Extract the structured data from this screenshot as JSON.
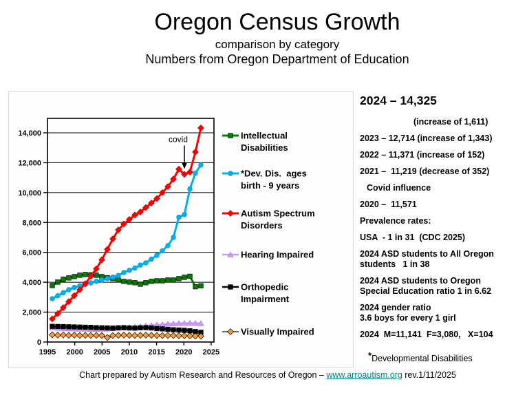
{
  "header": {
    "title": "Oregon Census Growth",
    "subtitle1": "comparison by category",
    "subtitle2": "Numbers from Oregon Department of Education"
  },
  "chart_data": {
    "type": "line",
    "title": "",
    "xlabel": "",
    "ylabel": "",
    "grid": "horizontal",
    "legend_position": "right",
    "x": [
      1997,
      1998,
      1999,
      2000,
      2001,
      2002,
      2003,
      2004,
      2005,
      2006,
      2007,
      2008,
      2009,
      2010,
      2011,
      2012,
      2013,
      2014,
      2015,
      2016,
      2017,
      2018,
      2019,
      2020,
      2021,
      2022,
      2023,
      2024
    ],
    "x_ticks": [
      1995,
      2000,
      2005,
      2010,
      2015,
      2020,
      2025
    ],
    "y_ticks": [
      0,
      2000,
      4000,
      6000,
      8000,
      10000,
      12000,
      14000
    ],
    "y_tick_labels": [
      "0",
      "2,000",
      "4,000",
      "6,000",
      "8,000",
      "10,000",
      "12,000",
      "14,000"
    ],
    "ylim": [
      0,
      15000
    ],
    "annotation": {
      "text": "covid",
      "points_to_series": "Autism Spectrum Disorders",
      "points_to_year": 2021
    },
    "series": [
      {
        "name": "Intellectual Disabilities",
        "legend_lines": [
          "Intellectual",
          "Disabilities"
        ],
        "color": "#008000",
        "marker": "square",
        "marker_fill": "#008000",
        "marker_stroke": "#000000",
        "values": [
          3780,
          4010,
          4200,
          4290,
          4380,
          4470,
          4520,
          4500,
          4470,
          4380,
          4300,
          4240,
          4150,
          4060,
          4010,
          3970,
          3870,
          3970,
          4060,
          4100,
          4100,
          4150,
          4150,
          4240,
          4330,
          4400,
          3700,
          3760
        ]
      },
      {
        "name": "*Dev. Dis.  ages birth - 9 years",
        "legend_lines": [
          "*Dev. Dis.  ages",
          "birth - 9 years"
        ],
        "color": "#00B0F0",
        "marker": "circle",
        "marker_fill": "#00B0F0",
        "marker_stroke": "#0090C8",
        "values": [
          2900,
          3100,
          3300,
          3500,
          3650,
          3760,
          3860,
          3960,
          4060,
          4150,
          4250,
          4350,
          4450,
          4650,
          4800,
          4950,
          5150,
          5300,
          5550,
          5800,
          6100,
          6450,
          7000,
          8350,
          8530,
          10240,
          11300,
          11850
        ]
      },
      {
        "name": "Autism Spectrum Disorders",
        "legend_lines": [
          "Autism Spectrum",
          "Disorders"
        ],
        "color": "#FF0000",
        "marker": "diamond",
        "marker_fill": "#FF0000",
        "marker_stroke": "#D00000",
        "values": [
          1550,
          1900,
          2300,
          2700,
          3100,
          3500,
          3900,
          4400,
          4900,
          5500,
          6200,
          6900,
          7500,
          7900,
          8200,
          8500,
          8700,
          9000,
          9300,
          9600,
          10000,
          10400,
          10900,
          11571,
          11219,
          11371,
          12714,
          14325
        ]
      },
      {
        "name": "Hearing Impaired",
        "legend_lines": [
          "Hearing Impaired"
        ],
        "color": "#CC99FF",
        "marker": "triangle",
        "marker_fill": "#CC99FF",
        "marker_stroke": "#9966CC",
        "values": [
          950,
          930,
          910,
          890,
          880,
          870,
          870,
          860,
          860,
          870,
          880,
          900,
          930,
          950,
          980,
          1010,
          1050,
          1090,
          1120,
          1150,
          1180,
          1210,
          1230,
          1250,
          1260,
          1270,
          1260,
          1240
        ]
      },
      {
        "name": "Orthopedic Impairment",
        "legend_lines": [
          "Orthopedic",
          "Impairment"
        ],
        "color": "#000000",
        "marker": "square",
        "marker_fill": "#000000",
        "marker_stroke": "#000000",
        "values": [
          1050,
          1040,
          1030,
          1020,
          1010,
          1000,
          990,
          980,
          960,
          950,
          940,
          930,
          950,
          960,
          940,
          930,
          950,
          960,
          940,
          900,
          880,
          850,
          820,
          800,
          780,
          750,
          700,
          650
        ]
      },
      {
        "name": "Visually Impaired",
        "legend_lines": [
          "Visually Impaired"
        ],
        "color": "#336633",
        "marker": "diamond",
        "marker_fill": "#FF9933",
        "marker_stroke": "#000000",
        "values": [
          480,
          460,
          470,
          450,
          460,
          440,
          450,
          440,
          450,
          440,
          300,
          430,
          450,
          460,
          450,
          440,
          450,
          460,
          450,
          440,
          430,
          440,
          430,
          420,
          420,
          410,
          400,
          390
        ]
      }
    ]
  },
  "stats": {
    "headline": "2024 – 14,325",
    "lines": [
      {
        "text": "(increase of 1,611)",
        "indent": 78
      },
      {
        "text": "2023 – 12,714 (increase of 1,343)"
      },
      {
        "text": "2022 – 11,371 (increase of 152)"
      },
      {
        "text": "2021 –  11,219 (decrease of 352)"
      },
      {
        "text": "Covid influence",
        "indent": 10
      },
      {
        "text": "2020 –  11,571"
      },
      {
        "text": "Prevalence rates:"
      },
      {
        "text": "USA  - 1 in 31  (CDC 2025)"
      },
      {
        "text": "2024 ASD students to All Oregon\nstudents   1 in 38"
      },
      {
        "text": "2024 ASD students to Oregon\nSpecial Education ratio 1 in 6.62"
      },
      {
        "text": "2024 gender ratio\n3.6 boys for every 1 girl"
      },
      {
        "text": "2024  M=11,141  F=3,080,   X=104"
      }
    ],
    "footnote_star": "*",
    "footnote_text": "Developmental Disabilities"
  },
  "footer": {
    "prefix": "Chart prepared by Autism Research and Resources of Oregon – ",
    "link": "www.arroautism.org",
    "suffix": "   rev.1/11/2025",
    "link_color": "#008080"
  }
}
